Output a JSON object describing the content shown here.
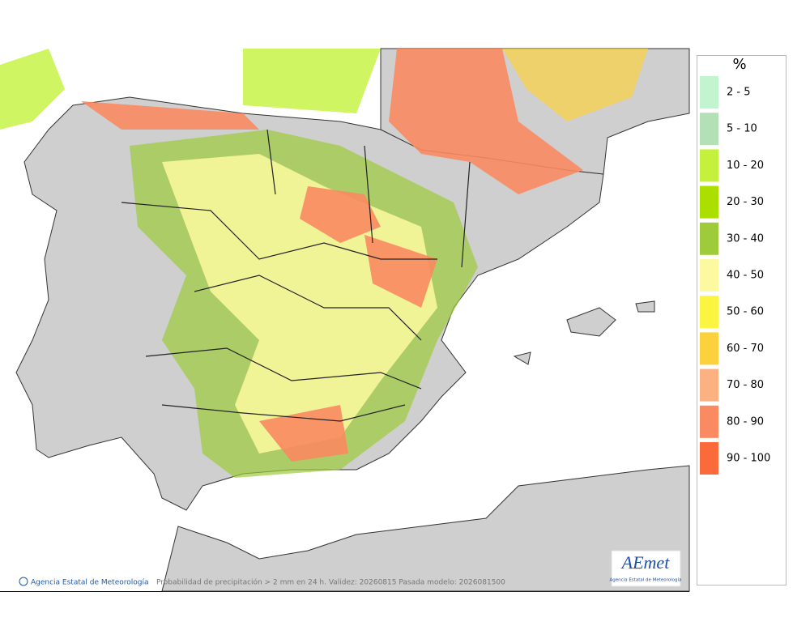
{
  "legend": {
    "title": "%",
    "items": [
      {
        "label": "2 - 5",
        "color": "#c2f5cf"
      },
      {
        "label": "5 - 10",
        "color": "#b4e0b8"
      },
      {
        "label": "10 - 20",
        "color": "#c4f23c"
      },
      {
        "label": "20 - 30",
        "color": "#aadf00"
      },
      {
        "label": "30 - 40",
        "color": "#9dcb3a"
      },
      {
        "label": "40 - 50",
        "color": "#fdf9a0"
      },
      {
        "label": "50 - 60",
        "color": "#fbf440"
      },
      {
        "label": "60 - 70",
        "color": "#fbd23e"
      },
      {
        "label": "70 - 80",
        "color": "#fbb182"
      },
      {
        "label": "80 - 90",
        "color": "#fa8a62"
      },
      {
        "label": "90 - 100",
        "color": "#fb6a3a"
      }
    ]
  },
  "footer": {
    "credit": "Agencia Estatal de Meteorología",
    "caption": "Probabilidad de precipitación > 2 mm en 24 h. Validez: 20260815 Pasada modelo: 2026081500"
  },
  "logo": {
    "name": "AEmet",
    "subtitle": "Agencia Estatal de Meteorología"
  }
}
